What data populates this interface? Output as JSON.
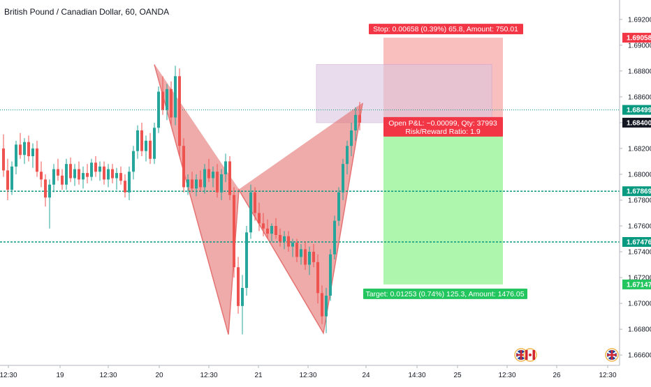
{
  "chart_data": {
    "type": "candlestick",
    "title": "British Pound / Canadian Dollar, 60, OANDA",
    "symbol": "British Pound / Canadian Dollar",
    "interval": "60",
    "broker": "OANDA",
    "y_axis": {
      "ylim": [
        1.6652,
        1.6935
      ],
      "tick_labels": [
        "1.69200",
        "1.69000",
        "1.68800",
        "1.68600",
        "1.68400",
        "1.68200",
        "1.68000",
        "1.67800",
        "1.67600",
        "1.67400",
        "1.67200",
        "1.67000",
        "1.66800",
        "1.66600"
      ],
      "position": "right"
    },
    "x_axis": {
      "tick_labels": [
        "12:30",
        "19",
        "12:30",
        "20",
        "12:30",
        "21",
        "12:30",
        "24",
        "14:30",
        "25",
        "12:30",
        "26",
        "12:30"
      ]
    },
    "price_labels": [
      {
        "label": "1.69058",
        "price": 1.69058,
        "color": "#f23645"
      },
      {
        "label": "1.68499",
        "price": 1.68499,
        "color": "#089981"
      },
      {
        "label": "1.68400",
        "price": 1.684,
        "color": "#131722"
      },
      {
        "label": "1.67869",
        "price": 1.67869,
        "color": "#089981"
      },
      {
        "label": "1.67476",
        "price": 1.67476,
        "color": "#089981"
      },
      {
        "label": "1.67147",
        "price": 1.67147,
        "color": "#22c55e"
      }
    ],
    "horizontal_lines": [
      {
        "price": 1.68499,
        "style": "dotted",
        "color": "#089981"
      },
      {
        "price": 1.67869,
        "style": "dashed",
        "color": "#089981"
      },
      {
        "price": 1.67476,
        "style": "dashed",
        "color": "#089981"
      }
    ],
    "harmonic_pattern": {
      "points": [
        {
          "time": "19 21:00",
          "price": 1.6885
        },
        {
          "time": "20 14:00",
          "price": 1.6676
        },
        {
          "time": "20 17:00",
          "price": 1.6788
        },
        {
          "time": "21 13:00",
          "price": 1.6677
        },
        {
          "time": "21 21:00",
          "price": 1.6855
        }
      ],
      "color": "#e57373"
    },
    "position": {
      "side": "short",
      "entry": 1.684,
      "stop": 1.69058,
      "target": 1.67147,
      "stop_label": "Stop: 0.00658 (0.39%) 65.8, Amount: 750.01",
      "pnl_label": "Open P&L: −0.00099, Qty: 37993",
      "rr_label": "Risk/Reward Ratio: 1.9",
      "target_label": "Target: 0.01253 (0.74%) 125.3, Amount: 1476.05"
    },
    "zone": {
      "top": 1.6885,
      "bottom": 1.684
    },
    "candles": [
      [
        1.682,
        1.6831,
        1.6798,
        1.6803
      ],
      [
        1.6803,
        1.6812,
        1.678,
        1.6788
      ],
      [
        1.6788,
        1.681,
        1.6784,
        1.6806
      ],
      [
        1.6806,
        1.6826,
        1.68,
        1.6823
      ],
      [
        1.6823,
        1.6832,
        1.6812,
        1.6815
      ],
      [
        1.6815,
        1.6828,
        1.6808,
        1.6825
      ],
      [
        1.6825,
        1.683,
        1.681,
        1.6814
      ],
      [
        1.6814,
        1.6824,
        1.6805,
        1.682
      ],
      [
        1.682,
        1.6826,
        1.6798,
        1.6802
      ],
      [
        1.6802,
        1.681,
        1.679,
        1.6796
      ],
      [
        1.6796,
        1.68,
        1.6775,
        1.6782
      ],
      [
        1.6782,
        1.6796,
        1.6758,
        1.6792
      ],
      [
        1.6792,
        1.6808,
        1.6786,
        1.6804
      ],
      [
        1.6804,
        1.6812,
        1.6795,
        1.6799
      ],
      [
        1.6799,
        1.6804,
        1.6788,
        1.6792
      ],
      [
        1.6792,
        1.6812,
        1.6788,
        1.6808
      ],
      [
        1.6808,
        1.6813,
        1.6794,
        1.6797
      ],
      [
        1.6797,
        1.6808,
        1.6791,
        1.6804
      ],
      [
        1.6804,
        1.681,
        1.6792,
        1.6796
      ],
      [
        1.6796,
        1.6806,
        1.6789,
        1.6801
      ],
      [
        1.6801,
        1.6808,
        1.6793,
        1.6798
      ],
      [
        1.6798,
        1.6812,
        1.6795,
        1.6809
      ],
      [
        1.6809,
        1.6814,
        1.6798,
        1.6802
      ],
      [
        1.6802,
        1.681,
        1.6795,
        1.6806
      ],
      [
        1.6806,
        1.681,
        1.6792,
        1.6796
      ],
      [
        1.6796,
        1.6808,
        1.679,
        1.6804
      ],
      [
        1.6804,
        1.6808,
        1.6793,
        1.6797
      ],
      [
        1.6797,
        1.6805,
        1.6788,
        1.6801
      ],
      [
        1.6801,
        1.6806,
        1.6792,
        1.6795
      ],
      [
        1.6795,
        1.68,
        1.6782,
        1.6786
      ],
      [
        1.6786,
        1.6806,
        1.678,
        1.6802
      ],
      [
        1.6802,
        1.6822,
        1.6796,
        1.6818
      ],
      [
        1.6818,
        1.6838,
        1.6812,
        1.6834
      ],
      [
        1.6834,
        1.684,
        1.6814,
        1.6818
      ],
      [
        1.6818,
        1.683,
        1.681,
        1.6826
      ],
      [
        1.6826,
        1.6832,
        1.6808,
        1.6812
      ],
      [
        1.6812,
        1.684,
        1.6808,
        1.6836
      ],
      [
        1.6836,
        1.6868,
        1.6832,
        1.6864
      ],
      [
        1.6864,
        1.6876,
        1.6846,
        1.685
      ],
      [
        1.685,
        1.687,
        1.6842,
        1.6866
      ],
      [
        1.6866,
        1.6872,
        1.6838,
        1.6844
      ],
      [
        1.6844,
        1.6884,
        1.6838,
        1.6876
      ],
      [
        1.6876,
        1.6882,
        1.6814,
        1.6822
      ],
      [
        1.6822,
        1.6828,
        1.6786,
        1.679
      ],
      [
        1.679,
        1.68,
        1.6784,
        1.6796
      ],
      [
        1.6796,
        1.6802,
        1.6786,
        1.6789
      ],
      [
        1.6789,
        1.68,
        1.6783,
        1.6796
      ],
      [
        1.6796,
        1.6803,
        1.6787,
        1.679
      ],
      [
        1.679,
        1.6808,
        1.6785,
        1.6804
      ],
      [
        1.6804,
        1.6812,
        1.6794,
        1.6797
      ],
      [
        1.6797,
        1.6806,
        1.679,
        1.6802
      ],
      [
        1.6802,
        1.6808,
        1.6782,
        1.6786
      ],
      [
        1.6786,
        1.6804,
        1.678,
        1.68
      ],
      [
        1.68,
        1.6816,
        1.6794,
        1.681
      ],
      [
        1.681,
        1.6814,
        1.678,
        1.6784
      ],
      [
        1.6784,
        1.679,
        1.672,
        1.6728
      ],
      [
        1.6728,
        1.6736,
        1.6692,
        1.6698
      ],
      [
        1.6698,
        1.6722,
        1.6676,
        1.6712
      ],
      [
        1.6712,
        1.676,
        1.6706,
        1.6755
      ],
      [
        1.6755,
        1.6792,
        1.675,
        1.6786
      ],
      [
        1.6786,
        1.679,
        1.6764,
        1.677
      ],
      [
        1.677,
        1.6778,
        1.6756,
        1.6762
      ],
      [
        1.6762,
        1.677,
        1.6752,
        1.6758
      ],
      [
        1.6758,
        1.6765,
        1.675,
        1.6754
      ],
      [
        1.6754,
        1.6762,
        1.6748,
        1.676
      ],
      [
        1.676,
        1.6766,
        1.675,
        1.6753
      ],
      [
        1.6753,
        1.6758,
        1.6744,
        1.6748
      ],
      [
        1.6748,
        1.6756,
        1.6742,
        1.6752
      ],
      [
        1.6752,
        1.6756,
        1.674,
        1.6744
      ],
      [
        1.6744,
        1.675,
        1.6736,
        1.6747
      ],
      [
        1.6747,
        1.675,
        1.6732,
        1.6736
      ],
      [
        1.6736,
        1.6746,
        1.673,
        1.6742
      ],
      [
        1.6742,
        1.6748,
        1.6726,
        1.673
      ],
      [
        1.673,
        1.6744,
        1.6722,
        1.674
      ],
      [
        1.674,
        1.6746,
        1.6728,
        1.6732
      ],
      [
        1.6732,
        1.6738,
        1.67,
        1.6708
      ],
      [
        1.6708,
        1.6714,
        1.6684,
        1.669
      ],
      [
        1.669,
        1.6712,
        1.6677,
        1.6706
      ],
      [
        1.6706,
        1.6742,
        1.6702,
        1.6738
      ],
      [
        1.6738,
        1.6768,
        1.6734,
        1.6764
      ],
      [
        1.6764,
        1.679,
        1.676,
        1.6786
      ],
      [
        1.6786,
        1.6812,
        1.678,
        1.6808
      ],
      [
        1.6808,
        1.6826,
        1.68,
        1.6822
      ],
      [
        1.6822,
        1.684,
        1.6814,
        1.6834
      ],
      [
        1.6834,
        1.6852,
        1.6826,
        1.6846
      ],
      [
        1.6846,
        1.6856,
        1.6834,
        1.684
      ]
    ]
  },
  "colors": {
    "up": "#26a69a",
    "down": "#ef5350",
    "pattern": "#e57373",
    "stop_zone": "#f8b4b4",
    "target_zone": "#a5f5a5",
    "zone": "#dcc6e0"
  },
  "icons": [
    "gb-flag-icon",
    "ca-flag-icon",
    "gb-flag-icon"
  ]
}
